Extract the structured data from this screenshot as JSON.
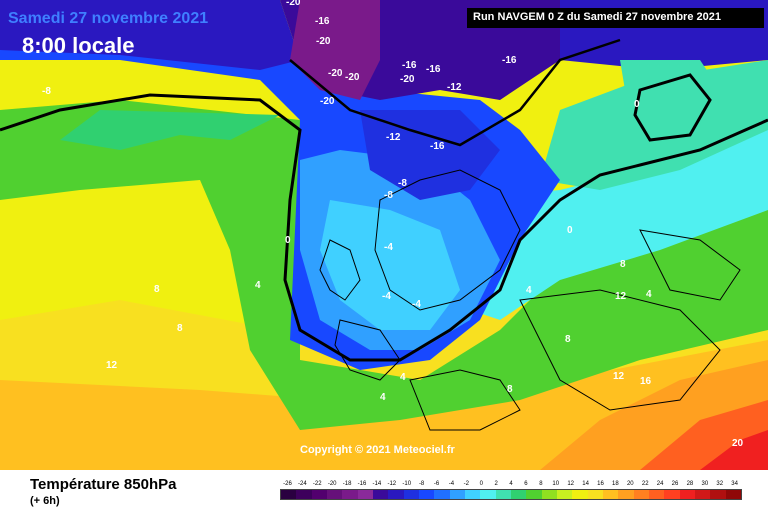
{
  "header": {
    "date": "Samedi 27 novembre 2021",
    "time": "8:00 locale",
    "run": "Run NAVGEM 0 Z du Samedi 27 novembre 2021"
  },
  "footer": {
    "parameter": "Température 850hPa",
    "lead": "(+ 6h)",
    "copyright": "Copyright © 2021 Meteociel.fr"
  },
  "legend": {
    "ticks": [
      "-26",
      "-24",
      "-22",
      "-20",
      "-18",
      "-16",
      "-14",
      "-12",
      "-10",
      "-8",
      "-6",
      "-4",
      "-2",
      "0",
      "2",
      "4",
      "6",
      "8",
      "10",
      "12",
      "14",
      "16",
      "18",
      "20",
      "22",
      "24",
      "26",
      "28",
      "30",
      "32",
      "34"
    ],
    "colors": [
      "#2a0040",
      "#3d005c",
      "#52006e",
      "#66107a",
      "#7a1a8a",
      "#8a2a9a",
      "#3a0a9a",
      "#2a18c0",
      "#1f30e0",
      "#1848ff",
      "#2070ff",
      "#30a0ff",
      "#40d0ff",
      "#50f0f0",
      "#40e0b0",
      "#30d070",
      "#50d030",
      "#90e020",
      "#c8f020",
      "#f0f010",
      "#f8e020",
      "#ffc020",
      "#ffa020",
      "#ff8020",
      "#ff6020",
      "#ff4020",
      "#f02020",
      "#d01818",
      "#b01010",
      "#900808"
    ]
  },
  "map_labels": {
    "m20a": "-20",
    "m20b": "-20",
    "m20c": "-20",
    "m20d": "-20",
    "m20e": "-20",
    "m20f": "-20",
    "m16a": "-16",
    "m16b": "-16",
    "m16c": "-16",
    "m16d": "-16",
    "m16e": "-16",
    "m12a": "-12",
    "m12b": "-12",
    "m8a": "-8",
    "m8b": "-8",
    "m8c": "-8",
    "m4a": "-4",
    "m4b": "-4",
    "m4c": "-4",
    "z1": "0",
    "z2": "0",
    "z3": "0",
    "p4a": "4",
    "p4b": "4",
    "p4c": "4",
    "p4d": "4",
    "p4e": "4",
    "p8a": "8",
    "p8b": "8",
    "p8c": "8",
    "p8d": "8",
    "p8e": "8",
    "p12a": "12",
    "p12b": "12",
    "p12c": "12",
    "p16a": "16",
    "p20a": "20"
  }
}
